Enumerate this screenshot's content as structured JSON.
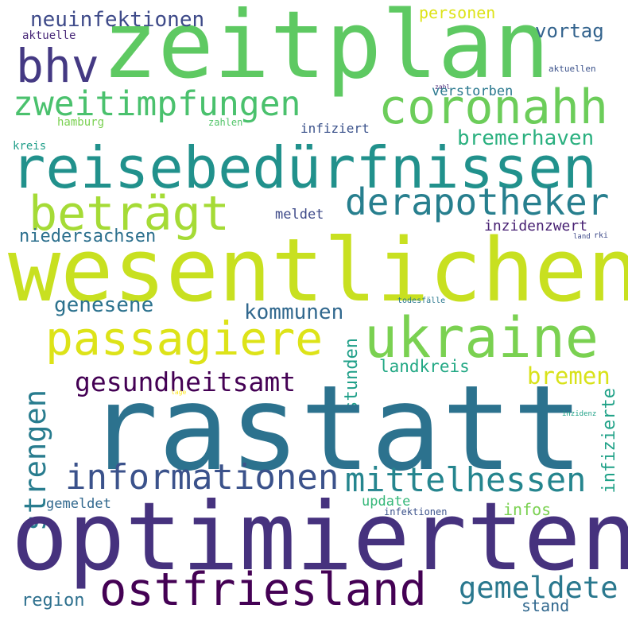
{
  "words": {
    "zeitplan": {
      "text": "zeitplan",
      "color": "#5ec962"
    },
    "wesentlichen": {
      "text": "wesentlichen",
      "color": "#c8e020"
    },
    "rastatt": {
      "text": "rastatt",
      "color": "#2c728e"
    },
    "optimierten": {
      "text": "optimierten",
      "color": "#46327e"
    },
    "reisebeduerfnissen": {
      "text": "reisebedürfnissen",
      "color": "#21918c"
    },
    "ukraine": {
      "text": "ukraine",
      "color": "#7ad151"
    },
    "passagiere": {
      "text": "passagiere",
      "color": "#dde318"
    },
    "coronahh": {
      "text": "coronahh",
      "color": "#6ccd5a"
    },
    "bhv": {
      "text": "bhv",
      "color": "#443983"
    },
    "betraegt": {
      "text": "beträgt",
      "color": "#a5db36"
    },
    "zweitimpfungen": {
      "text": "zweitimpfungen",
      "color": "#4ac16d"
    },
    "ostfriesland": {
      "text": "ostfriesland",
      "color": "#440154"
    },
    "derapotheker": {
      "text": "derapotheker",
      "color": "#277f8e"
    },
    "informationen": {
      "text": "informationen",
      "color": "#3b528b"
    },
    "mittelhessen": {
      "text": "mittelhessen",
      "color": "#25858e"
    },
    "gesundheitsamt": {
      "text": "gesundheitsamt",
      "color": "#440154"
    },
    "neuinfektionen": {
      "text": "neuinfektionen",
      "color": "#3e4a89"
    },
    "bremerhaven": {
      "text": "bremerhaven",
      "color": "#2ab07f"
    },
    "strengen": {
      "text": "strengen",
      "color": "#287c8e"
    },
    "gemeldete": {
      "text": "gemeldete",
      "color": "#2a788e"
    },
    "bremen": {
      "text": "bremen",
      "color": "#d8e219"
    },
    "vortag": {
      "text": "vortag",
      "color": "#33638d"
    },
    "genesene": {
      "text": "genesene",
      "color": "#2c728e"
    },
    "kommunen": {
      "text": "kommunen",
      "color": "#31688e"
    },
    "personen": {
      "text": "personen",
      "color": "#dde318"
    },
    "stunden": {
      "text": "stunden",
      "color": "#1f9f88"
    },
    "landkreis": {
      "text": "landkreis",
      "color": "#22a884"
    },
    "infizierte": {
      "text": "infizierte",
      "color": "#1fa187"
    },
    "niedersachsen": {
      "text": "niedersachsen",
      "color": "#2d708e"
    },
    "inzidenzwert": {
      "text": "inzidenzwert",
      "color": "#482173"
    },
    "meldet": {
      "text": "meldet",
      "color": "#3e4a89"
    },
    "region": {
      "text": "region",
      "color": "#2d708e"
    },
    "update": {
      "text": "update",
      "color": "#35b779"
    },
    "infos": {
      "text": "infos",
      "color": "#7ad151"
    },
    "gemeldet": {
      "text": "gemeldet",
      "color": "#31688e"
    },
    "stand": {
      "text": "stand",
      "color": "#31688e"
    },
    "verstorben": {
      "text": "verstorben",
      "color": "#2a788e"
    },
    "hamburg": {
      "text": "hamburg",
      "color": "#7ad151"
    },
    "infiziert": {
      "text": "infiziert",
      "color": "#3b528b"
    },
    "aktuelle": {
      "text": "aktuelle",
      "color": "#482878"
    },
    "aktuellen": {
      "text": "aktuellen",
      "color": "#3b528b"
    },
    "zahlen": {
      "text": "zahlen",
      "color": "#52c569"
    },
    "kreis": {
      "text": "kreis",
      "color": "#1f9e89"
    },
    "infektionen": {
      "text": "infektionen",
      "color": "#3b528b"
    },
    "todesfaelle": {
      "text": "todesfälle",
      "color": "#2a788e"
    },
    "zahl": {
      "text": "zahl",
      "color": "#482878"
    },
    "land": {
      "text": "land",
      "color": "#3e4a89"
    },
    "rki": {
      "text": "rki",
      "color": "#3e4a89"
    },
    "lage": {
      "text": "lage",
      "color": "#fde725"
    },
    "inzidenz": {
      "text": "inzidenz",
      "color": "#1fa187"
    }
  }
}
